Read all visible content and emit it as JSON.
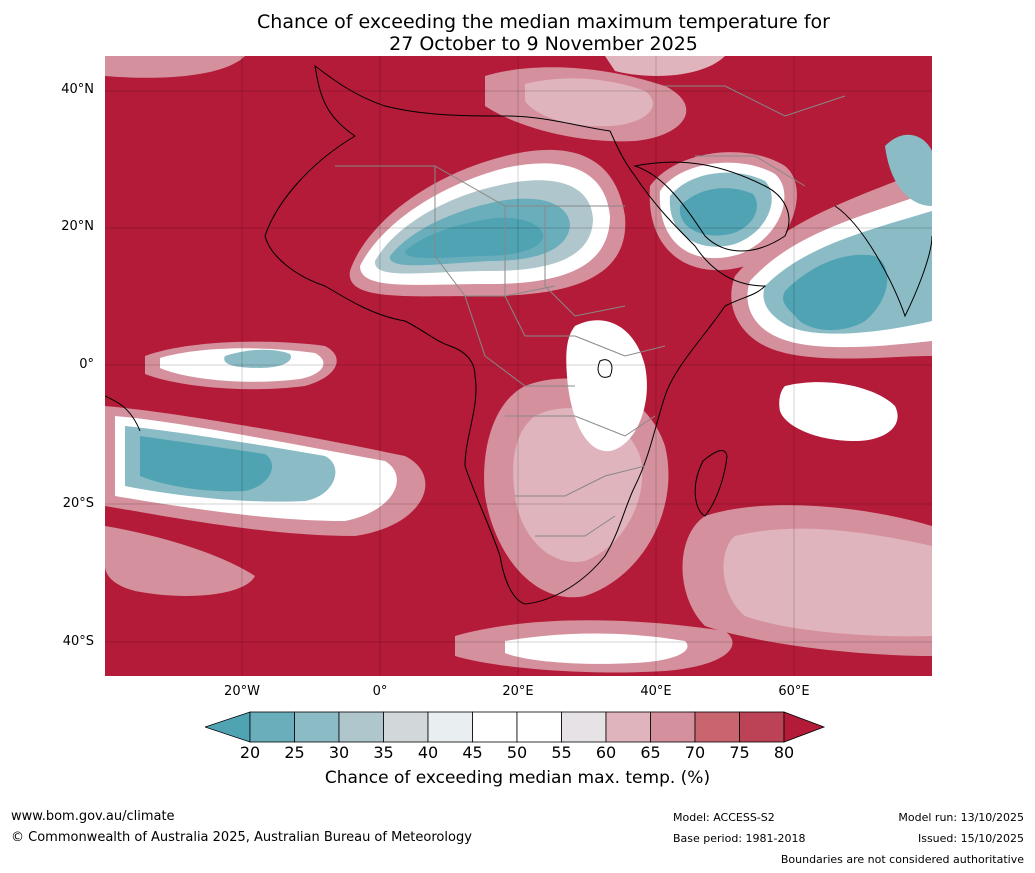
{
  "title": {
    "line1": "Chance of exceeding the median maximum temperature for",
    "line2": "27 October to 9 November 2025"
  },
  "axes": {
    "lat_labels": [
      "40°N",
      "20°N",
      "0°",
      "20°S",
      "40°S"
    ],
    "lon_labels": [
      "20°W",
      "0°",
      "20°E",
      "40°E",
      "60°E"
    ]
  },
  "colorbar": {
    "ticks": [
      "20",
      "25",
      "30",
      "35",
      "40",
      "45",
      "50",
      "55",
      "60",
      "65",
      "70",
      "75",
      "80"
    ],
    "colors": [
      "#4fa3b3",
      "#6aaebb",
      "#8bbcc6",
      "#aec6cc",
      "#d2d7da",
      "#e9eef1",
      "#ffffff",
      "#ffffff",
      "#e6e2e5",
      "#e0b4bd",
      "#d4909c",
      "#c8656f",
      "#bc4355",
      "#b31b38"
    ],
    "title": "Chance of exceeding median max. temp. (%)"
  },
  "footer": {
    "website": "www.bom.gov.au/climate",
    "copyright": "© Commonwealth of Australia 2025, Australian Bureau of Meteorology",
    "model": "Model: ACCESS-S2",
    "base_period": "Base period: 1981-2018",
    "model_run": "Model run: 13/10/2025",
    "issued": "Issued: 15/10/2025",
    "disclaimer": "Boundaries are not considered authoritative"
  }
}
